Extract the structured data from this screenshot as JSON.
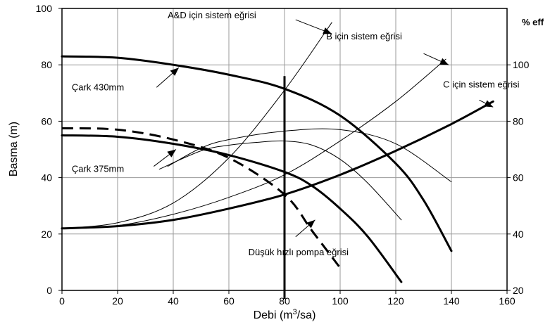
{
  "chart_data": {
    "type": "line",
    "xlabel_prefix": "Debi (m",
    "xlabel_sup": "3",
    "xlabel_suffix": "/sa)",
    "ylabel": "Basma (m)",
    "y2label": "% eff",
    "xlim": [
      0,
      160
    ],
    "ylim": [
      0,
      100
    ],
    "y2lim": [
      20,
      120
    ],
    "xticks": [
      0,
      20,
      40,
      60,
      80,
      100,
      120,
      140,
      160
    ],
    "yticks": [
      0,
      20,
      40,
      60,
      80,
      100
    ],
    "y2ticks": [
      20,
      40,
      60,
      80,
      100
    ],
    "grid": true,
    "operating_line_x": 80,
    "series": [
      {
        "name": "Çark 430mm",
        "style": "thick-solid",
        "axis": "y",
        "x": [
          0,
          20,
          40,
          60,
          80,
          100,
          120,
          130,
          140
        ],
        "y": [
          83,
          82.5,
          80,
          76.5,
          71.5,
          62,
          45,
          32,
          14
        ]
      },
      {
        "name": "Çark 375mm",
        "style": "thick-solid",
        "axis": "y",
        "x": [
          0,
          20,
          40,
          60,
          80,
          90,
          100,
          110,
          122
        ],
        "y": [
          55,
          54.5,
          52,
          48,
          42,
          37,
          29,
          19,
          3
        ]
      },
      {
        "name": "Düşük hızlı pompa eğrisi",
        "style": "thick-dashed",
        "axis": "y",
        "x": [
          0,
          20,
          40,
          60,
          80,
          90,
          100
        ],
        "y": [
          57.5,
          57,
          53.5,
          47,
          34,
          21,
          8
        ]
      },
      {
        "name": "A&D için sistem eğrisi",
        "style": "thin",
        "axis": "y",
        "x": [
          0,
          20,
          40,
          60,
          80,
          97
        ],
        "y": [
          22,
          24,
          31,
          47,
          71,
          95
        ]
      },
      {
        "name": "B için sistem eğrisi",
        "style": "thin",
        "axis": "y",
        "x": [
          0,
          20,
          40,
          60,
          80,
          100,
          120,
          138
        ],
        "y": [
          22,
          23,
          27,
          33,
          41,
          53,
          67,
          82
        ]
      },
      {
        "name": "C için sistem eğrisi",
        "style": "thick-solid",
        "axis": "y",
        "x": [
          0,
          20,
          40,
          60,
          80,
          100,
          120,
          140,
          155
        ],
        "y": [
          22,
          22.8,
          25,
          29,
          34,
          41,
          49.5,
          59,
          67
        ]
      },
      {
        "name": "eff 430mm",
        "style": "thin",
        "axis": "y2",
        "x": [
          38,
          50,
          60,
          80,
          100,
          120,
          140
        ],
        "y": [
          64,
          70.5,
          73.5,
          76.5,
          77,
          72,
          58.5
        ]
      },
      {
        "name": "eff 375mm",
        "style": "thin",
        "axis": "y2",
        "x": [
          35,
          50,
          60,
          70,
          80,
          90,
          100,
          110,
          122
        ],
        "y": [
          63,
          69.5,
          71.5,
          72.5,
          73,
          71.5,
          66.5,
          58,
          45
        ]
      }
    ],
    "annotations": [
      {
        "text": "A&D için sistem eğrisi",
        "tx": 38,
        "ty": 96.5,
        "ax": 84,
        "ay": 96,
        "hx": 97,
        "hy": 91
      },
      {
        "text": "B için sistem eğrisi",
        "tx": 95,
        "ty": 89,
        "ax": 130,
        "ay": 84,
        "hx": 139,
        "hy": 80
      },
      {
        "text": "C için sistem eğrisi",
        "tx": 137,
        "ty": 72,
        "ax": 150,
        "ay": 67.5,
        "hx": 155,
        "hy": 65
      },
      {
        "text": "Çark 430mm",
        "tx": 3.5,
        "ty": 71,
        "ax": 34,
        "ay": 72,
        "hx": 42,
        "hy": 79
      },
      {
        "text": "Çark 375mm",
        "tx": 3.5,
        "ty": 42,
        "ax": 33,
        "ay": 44,
        "hx": 41,
        "hy": 50
      },
      {
        "text": "Düşük hızlı pompa eğrisi",
        "tx": 67,
        "ty": 12.5,
        "ax": 84,
        "ay": 19,
        "hx": 91,
        "hy": 25
      }
    ]
  }
}
